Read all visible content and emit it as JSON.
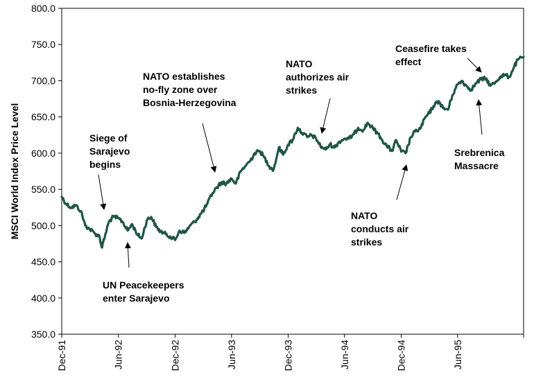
{
  "chart_data": {
    "type": "line",
    "title": "",
    "xlabel": "",
    "ylabel": "MSCI World Index Price Level",
    "ylim": [
      350,
      800
    ],
    "y_ticks": [
      "350.0",
      "400.0",
      "450.0",
      "500.0",
      "550.0",
      "600.0",
      "650.0",
      "700.0",
      "750.0",
      "800.0"
    ],
    "x_ticks": [
      "Dec-91",
      "Jun-92",
      "Dec-92",
      "Jun-93",
      "Dec-93",
      "Jun-94",
      "Dec-94",
      "Jun-95"
    ],
    "grid": false,
    "legend": "none",
    "line_color": "#1f5546",
    "series": [
      {
        "x": [
          "1991-12-01",
          "1991-12-15",
          "1992-01-01",
          "1992-01-15",
          "1992-02-01",
          "1992-02-15",
          "1992-03-01",
          "1992-03-15",
          "1992-04-01",
          "1992-04-08",
          "1992-04-15",
          "1992-05-01",
          "1992-05-15",
          "1992-06-01",
          "1992-06-15",
          "1992-07-01",
          "1992-07-15",
          "1992-08-01",
          "1992-08-15",
          "1992-09-01",
          "1992-09-15",
          "1992-10-01",
          "1992-10-15",
          "1992-11-01",
          "1992-11-15",
          "1992-12-01",
          "1992-12-15",
          "1993-01-01",
          "1993-01-15",
          "1993-02-01",
          "1993-02-15",
          "1993-03-01",
          "1993-03-15",
          "1993-04-01",
          "1993-04-15",
          "1993-05-01",
          "1993-05-15",
          "1993-06-01",
          "1993-06-15",
          "1993-07-01",
          "1993-07-15",
          "1993-08-01",
          "1993-08-15",
          "1993-09-01",
          "1993-09-15",
          "1993-10-01",
          "1993-10-15",
          "1993-11-01",
          "1993-11-15",
          "1993-12-01",
          "1993-12-15",
          "1994-01-01",
          "1994-01-15",
          "1994-02-01",
          "1994-02-15",
          "1994-03-01",
          "1994-03-15",
          "1994-04-01",
          "1994-04-15",
          "1994-05-01",
          "1994-05-15",
          "1994-06-01",
          "1994-06-15",
          "1994-07-01",
          "1994-07-15",
          "1994-08-01",
          "1994-08-15",
          "1994-09-01",
          "1994-09-15",
          "1994-10-01",
          "1994-10-15",
          "1994-11-01",
          "1994-11-15",
          "1994-12-01",
          "1994-12-15",
          "1995-01-01",
          "1995-01-15",
          "1995-02-01",
          "1995-02-15",
          "1995-03-01",
          "1995-03-15",
          "1995-04-01",
          "1995-04-15",
          "1995-05-01",
          "1995-05-15",
          "1995-06-01",
          "1995-06-15",
          "1995-07-01",
          "1995-07-15",
          "1995-08-01",
          "1995-08-15",
          "1995-09-01",
          "1995-09-15",
          "1995-10-01",
          "1995-10-15",
          "1995-11-01",
          "1995-11-15",
          "1995-12-01",
          "1995-12-15",
          "1995-12-31"
        ],
        "values": [
          540,
          530,
          525,
          528,
          520,
          500,
          495,
          490,
          485,
          470,
          480,
          505,
          512,
          510,
          505,
          493,
          502,
          488,
          482,
          508,
          512,
          498,
          492,
          488,
          485,
          480,
          493,
          490,
          498,
          505,
          512,
          520,
          530,
          545,
          553,
          560,
          558,
          565,
          558,
          575,
          582,
          590,
          600,
          603,
          594,
          582,
          577,
          608,
          598,
          612,
          618,
          635,
          628,
          622,
          625,
          620,
          610,
          605,
          612,
          608,
          616,
          620,
          620,
          626,
          635,
          632,
          642,
          634,
          628,
          618,
          610,
          603,
          618,
          602,
          600,
          622,
          630,
          634,
          648,
          655,
          665,
          672,
          662,
          660,
          680,
          695,
          700,
          692,
          688,
          697,
          702,
          703,
          693,
          698,
          705,
          708,
          705,
          720,
          730,
          733
        ]
      }
    ],
    "annotations": [
      {
        "lines": [
          "Siege of",
          "Sarajevo",
          "begins"
        ],
        "x": "1992-03-01",
        "y": 496
      },
      {
        "lines": [
          "UN Peacekeepers",
          "enter Sarajevo"
        ],
        "x": "1992-06-20",
        "y": 480
      },
      {
        "lines": [
          "NATO establishes",
          "no-fly zone over",
          "Bosnia-Herzegovina"
        ],
        "x": "1993-04-12",
        "y": 560
      },
      {
        "lines": [
          "NATO",
          "authorizes air",
          "strikes"
        ],
        "x": "1994-02-10",
        "y": 625
      },
      {
        "lines": [
          "NATO",
          "conducts air",
          "strikes"
        ],
        "x": "1994-11-25",
        "y": 603
      },
      {
        "lines": [
          "Ceasefire takes",
          "effect"
        ],
        "x": "1995-10-15",
        "y": 712
      },
      {
        "lines": [
          "Srebrenica",
          "Massacre"
        ],
        "x": "1995-07-10",
        "y": 690
      }
    ]
  }
}
